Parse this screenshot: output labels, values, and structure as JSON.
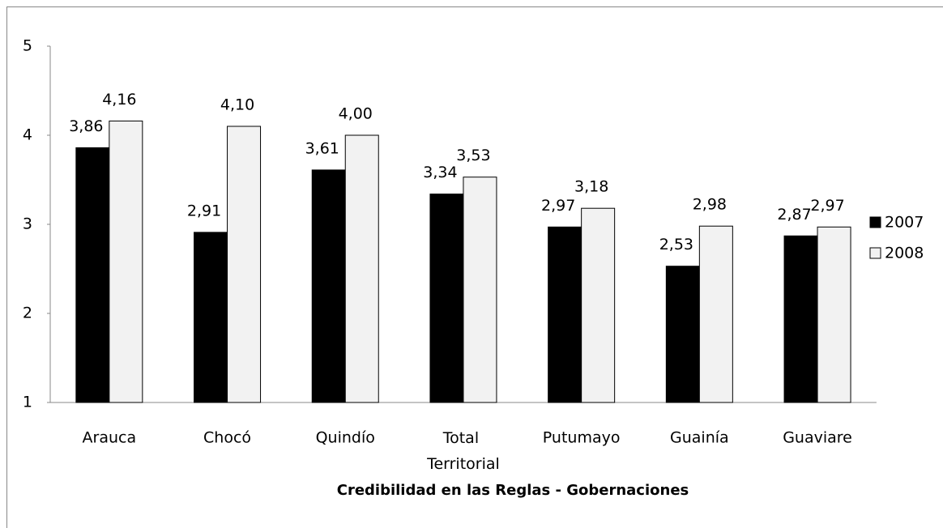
{
  "chart_data": {
    "type": "bar",
    "x_label": "Credibilidad en las Reglas - Gobernaciones",
    "categories": [
      "Arauca",
      "Chocó",
      "Quindío",
      "Total Territorial",
      "Putumayo",
      "Guainía",
      "Guaviare"
    ],
    "series": [
      {
        "name": "2007",
        "color": "#000000",
        "values": [
          3.86,
          2.91,
          3.61,
          3.34,
          2.97,
          2.53,
          2.87
        ],
        "value_labels": [
          "3,86",
          "2,91",
          "3,61",
          "3,34",
          "2,97",
          "2,53",
          "2,87"
        ]
      },
      {
        "name": "2008",
        "color": "#f2f2f2",
        "values": [
          4.16,
          4.1,
          4.0,
          3.53,
          3.18,
          2.98,
          2.97
        ],
        "value_labels": [
          "4,16",
          "4,10",
          "4,00",
          "3,53",
          "3,18",
          "2,98",
          "2,97"
        ]
      }
    ],
    "ylim": [
      1,
      5
    ],
    "yticks": [
      1,
      2,
      3,
      4,
      5
    ],
    "grid": false,
    "legend": "right"
  }
}
